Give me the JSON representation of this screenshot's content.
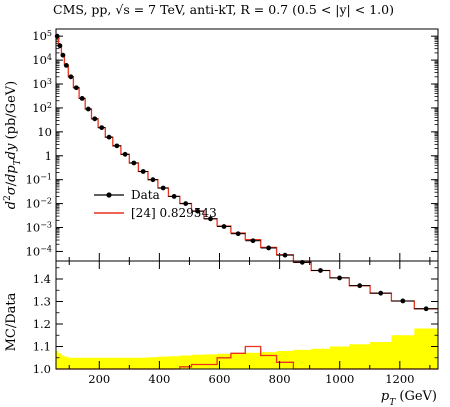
{
  "chart_data": {
    "type": "line",
    "title": "CMS, pp, √s = 7 TeV, anti-kT, R = 0.7 (0.5 < |y| < 1.0)",
    "xlabel": "pT (GeV)",
    "xlim": [
      56,
      1327
    ],
    "x_ticks": [
      200,
      400,
      600,
      800,
      1000,
      1200
    ],
    "main_panel": {
      "ylabel": "d²σ/dpTdy (pb/GeV)",
      "yscale": "log",
      "ylim_exp": [
        -4.4,
        5.3
      ],
      "y_tick_labels": [
        {
          "exp": 5,
          "text": "10^5"
        },
        {
          "exp": 4,
          "text": "10^4"
        },
        {
          "exp": 3,
          "text": "10^3"
        },
        {
          "exp": 2,
          "text": "10^2"
        },
        {
          "exp": 1,
          "text": "10"
        },
        {
          "exp": 0,
          "text": "1"
        },
        {
          "exp": -1,
          "text": "10^-1"
        },
        {
          "exp": -2,
          "text": "10^-2"
        },
        {
          "exp": -3,
          "text": "10^-3"
        },
        {
          "exp": -4,
          "text": "10^-4"
        }
      ],
      "legend": {
        "position": "bottom-left",
        "entries": [
          "Data",
          "[24] 0.829543"
        ]
      },
      "bin_edges": [
        56,
        64,
        74,
        84,
        97,
        114,
        133,
        153,
        174,
        196,
        220,
        245,
        272,
        300,
        330,
        362,
        395,
        430,
        468,
        507,
        548,
        592,
        638,
        686,
        737,
        790,
        846,
        905,
        967,
        1032,
        1101,
        1172,
        1248,
        1327
      ],
      "series": [
        {
          "name": "Data",
          "style": "points",
          "x": [
            60,
            69,
            79,
            90.5,
            105.5,
            123.5,
            143,
            163.5,
            185,
            208,
            232.5,
            258.5,
            286,
            315,
            346,
            378.5,
            412.5,
            449,
            487.5,
            527.5,
            570,
            615,
            662,
            711.5,
            763.5,
            818,
            875.5,
            936,
            999.5,
            1066.5,
            1136.5,
            1210,
            1287.5
          ],
          "y": [
            100000,
            40000,
            16000,
            6000,
            2000,
            700,
            250,
            90,
            35,
            15,
            6,
            2.6,
            1.15,
            0.5,
            0.22,
            0.1,
            0.045,
            0.02,
            0.01,
            0.0048,
            0.0023,
            0.0011,
            0.00055,
            0.00028,
            0.00014,
            7e-05,
            3.5e-05,
            1.6e-05,
            7.8e-06,
            3.7e-06,
            1.8e-06,
            8.5e-07,
            4e-07
          ]
        },
        {
          "name": "[24] 0.829543",
          "style": "histogram",
          "color": "#e8321e",
          "y": [
            100000,
            40000,
            16000,
            6000,
            2000,
            700,
            250,
            90,
            35,
            15,
            6,
            2.6,
            1.15,
            0.5,
            0.22,
            0.1,
            0.045,
            0.02,
            0.0101,
            0.0049,
            0.00235,
            0.00116,
            0.00059,
            0.00031,
            0.000148,
            7.2e-05,
            3.5e-05,
            1.6e-05,
            7.8e-06,
            3.7e-06,
            1.8e-06,
            8.5e-07,
            4e-07
          ]
        }
      ]
    },
    "ratio_panel": {
      "ylabel": "MC/Data",
      "ylim": [
        1.0,
        1.48
      ],
      "y_ticks": [
        1.0,
        1.1,
        1.2,
        1.3,
        1.4
      ],
      "band_color": "#ffff00",
      "band_upper": [
        1.08,
        1.07,
        1.06,
        1.055,
        1.05,
        1.05,
        1.05,
        1.05,
        1.05,
        1.05,
        1.05,
        1.05,
        1.05,
        1.05,
        1.05,
        1.052,
        1.055,
        1.057,
        1.06,
        1.063,
        1.065,
        1.068,
        1.07,
        1.072,
        1.075,
        1.08,
        1.085,
        1.09,
        1.1,
        1.11,
        1.12,
        1.15,
        1.18
      ],
      "ratio_line": [
        1,
        1,
        1,
        1,
        1,
        1,
        1,
        1,
        1,
        1,
        1,
        1,
        1,
        1,
        1,
        1,
        1,
        1,
        1.01,
        1.02,
        1.02,
        1.05,
        1.07,
        1.1,
        1.06,
        1.03,
        1,
        1,
        1,
        1,
        1,
        1,
        1
      ]
    }
  }
}
